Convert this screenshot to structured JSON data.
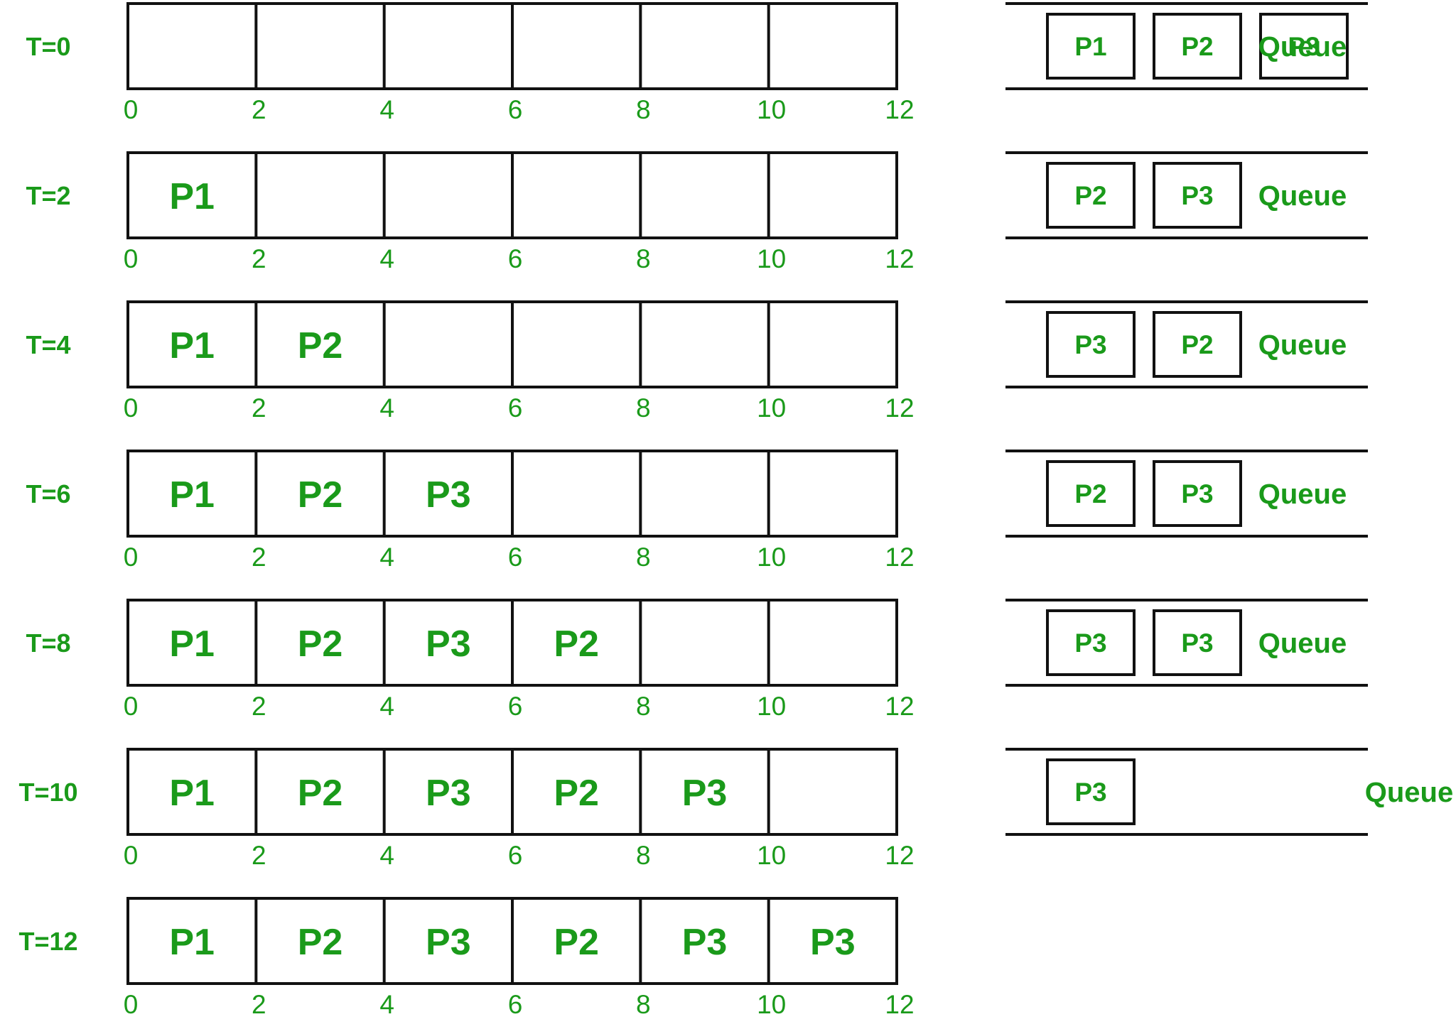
{
  "colors": {
    "text": "#1a9a1a",
    "line": "#111111",
    "background": "#ffffff"
  },
  "axis_ticks": [
    "0",
    "2",
    "4",
    "6",
    "8",
    "10",
    "12"
  ],
  "queue_label": "Queue",
  "rows": [
    {
      "time_label": "T=0",
      "gantt": [],
      "queue": [
        "P1",
        "P2",
        "P3"
      ]
    },
    {
      "time_label": "T=2",
      "gantt": [
        "P1"
      ],
      "queue": [
        "P2",
        "P3"
      ]
    },
    {
      "time_label": "T=4",
      "gantt": [
        "P1",
        "P2"
      ],
      "queue": [
        "P3",
        "P2"
      ]
    },
    {
      "time_label": "T=6",
      "gantt": [
        "P1",
        "P2",
        "P3"
      ],
      "queue": [
        "P2",
        "P3"
      ]
    },
    {
      "time_label": "T=8",
      "gantt": [
        "P1",
        "P2",
        "P3",
        "P2"
      ],
      "queue": [
        "P3",
        "P3"
      ]
    },
    {
      "time_label": "T=10",
      "gantt": [
        "P1",
        "P2",
        "P3",
        "P2",
        "P3"
      ],
      "queue": [
        "P3"
      ]
    },
    {
      "time_label": "T=12",
      "gantt": [
        "P1",
        "P2",
        "P3",
        "P2",
        "P3",
        "P3"
      ],
      "queue": null
    }
  ]
}
